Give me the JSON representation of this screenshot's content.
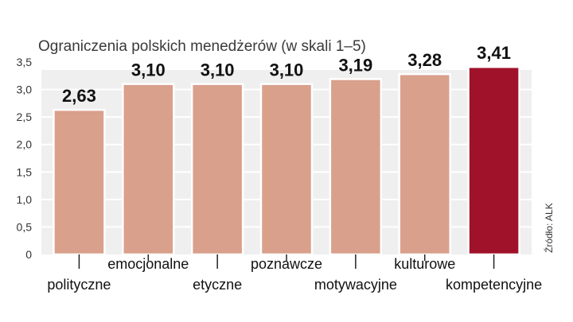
{
  "chart_data": {
    "type": "bar",
    "title": "Ograniczenia polskich menedżerów (w skali 1–5)",
    "categories": [
      "polityczne",
      "emocjonalne",
      "etyczne",
      "poznawcze",
      "motywacyjne",
      "kulturowe",
      "kompetencyjne"
    ],
    "values": [
      2.63,
      3.1,
      3.1,
      3.1,
      3.19,
      3.28,
      3.41
    ],
    "value_labels": [
      "2,63",
      "3,10",
      "3,10",
      "3,10",
      "3,19",
      "3,28",
      "3,41"
    ],
    "yticks": [
      "0",
      "0,5",
      "1,0",
      "1,5",
      "2,0",
      "2,5",
      "3,0",
      "3,5"
    ],
    "ytick_values": [
      0,
      0.5,
      1.0,
      1.5,
      2.0,
      2.5,
      3.0,
      3.5
    ],
    "ylim": [
      0,
      3.5
    ],
    "xlabel": "",
    "ylabel": "",
    "grid": true,
    "source": "Źródło: ALK",
    "colors": {
      "bar": "#d9a08c",
      "highlight": "#a0122a",
      "plot_bg": "#efefef",
      "grid": "#ffffff"
    },
    "highlight_index": 6
  }
}
